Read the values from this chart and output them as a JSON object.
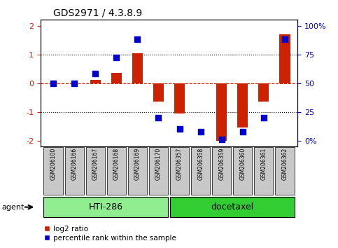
{
  "title": "GDS2971 / 4.3.8.9",
  "samples": [
    "GSM206100",
    "GSM206166",
    "GSM206167",
    "GSM206168",
    "GSM206169",
    "GSM206170",
    "GSM206357",
    "GSM206358",
    "GSM206359",
    "GSM206360",
    "GSM206361",
    "GSM206362"
  ],
  "log2_ratio": [
    0.0,
    0.0,
    0.12,
    0.35,
    1.05,
    -0.65,
    -1.05,
    0.0,
    -2.0,
    -1.55,
    -0.65,
    1.7
  ],
  "percentile": [
    50,
    50,
    58,
    72,
    88,
    20,
    10,
    8,
    1,
    8,
    20,
    88
  ],
  "groups": [
    {
      "label": "HTI-286",
      "start": 0,
      "end": 5,
      "color": "#90EE90"
    },
    {
      "label": "docetaxel",
      "start": 6,
      "end": 11,
      "color": "#32CD32"
    }
  ],
  "ylim": [
    -2.2,
    2.2
  ],
  "yticks_left": [
    -2,
    -1,
    0,
    1,
    2
  ],
  "bar_color": "#CC2200",
  "dot_color": "#0000CC",
  "dot_size": 30,
  "hline_color_zero": "#CC2200",
  "hline_color_grid": "#000000",
  "background_plot": "#FFFFFF",
  "background_label": "#C8C8C8",
  "legend_items": [
    "log2 ratio",
    "percentile rank within the sample"
  ],
  "agent_label": "agent"
}
